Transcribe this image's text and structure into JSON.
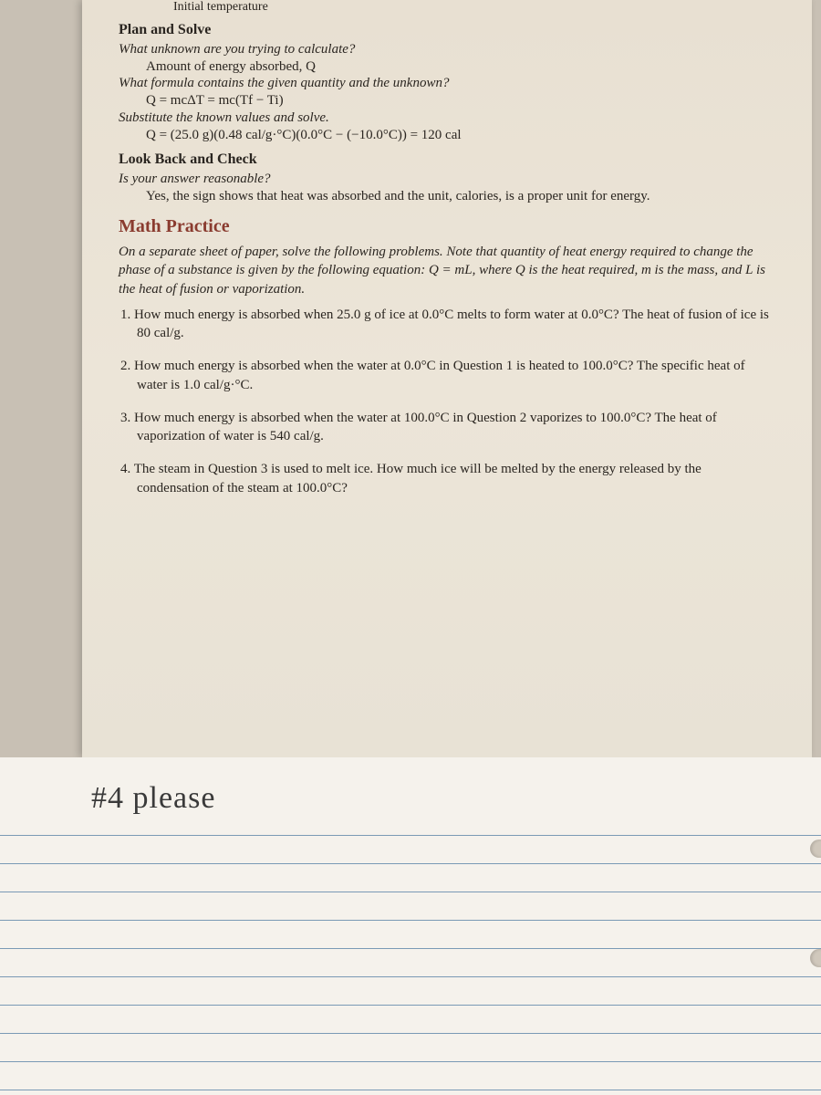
{
  "top_line": "Initial temperature",
  "plan_solve": {
    "title": "Plan and Solve",
    "q1": "What unknown are you trying to calculate?",
    "a1": "Amount of energy absorbed, Q",
    "q2": "What formula contains the given quantity and the unknown?",
    "a2": "Q = mcΔT = mc(Tf − Ti)",
    "q3": "Substitute the known values and solve.",
    "a3": "Q = (25.0 g)(0.48 cal/g·°C)(0.0°C − (−10.0°C)) = 120 cal"
  },
  "look_back": {
    "title": "Look Back and Check",
    "q1": "Is your answer reasonable?",
    "a1": "Yes, the sign shows that heat was absorbed and the unit, calories, is a proper unit for energy."
  },
  "math_practice": {
    "title": "Math Practice",
    "intro": "On a separate sheet of paper, solve the following problems. Note that quantity of heat energy required to change the phase of a substance is given by the following equation: Q = mL, where Q is the heat required, m is the mass, and L is the heat of fusion or vaporization.",
    "problems": [
      "1. How much energy is absorbed when 25.0 g of ice at 0.0°C melts to form water at 0.0°C? The heat of fusion of ice is 80 cal/g.",
      "2. How much energy is absorbed when the water at 0.0°C in Question 1 is heated to 100.0°C? The specific heat of water is 1.0 cal/g·°C.",
      "3. How much energy is absorbed when the water at 100.0°C in Question 2 vaporizes to 100.0°C? The heat of vaporization of water is 540 cal/g.",
      "4. The steam in Question 3 is used to melt ice. How much ice will be melted by the energy released by the condensation of the steam at 100.0°C?"
    ]
  },
  "handwritten_note": "#4  please",
  "colors": {
    "page_bg": "#e8e0d2",
    "heading_red": "#8a3b2f",
    "text": "#2a2520",
    "notebook_bg": "#f5f2ec",
    "rule_line": "#7a9ab5"
  }
}
